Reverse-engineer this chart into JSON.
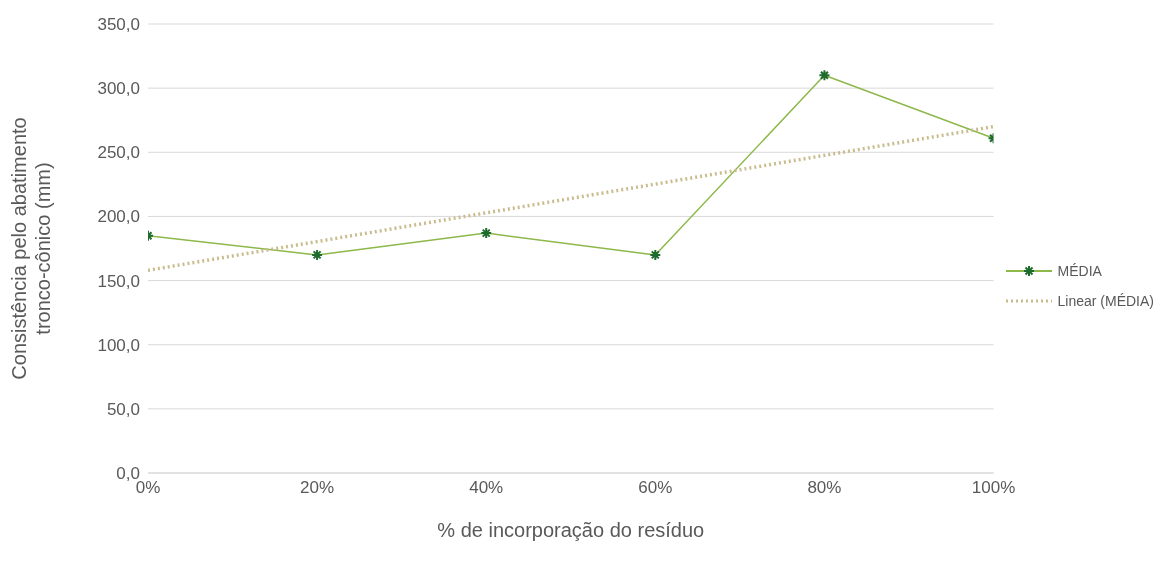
{
  "chart_data": {
    "type": "line",
    "xlabel": "% de incorporação do resíduo",
    "ylabel": "Consistência pelo abatimento\ntronco-cônico (mm)",
    "xlim": [
      0,
      100
    ],
    "xticks": [
      {
        "value": 0,
        "label": "0%"
      },
      {
        "value": 20,
        "label": "20%"
      },
      {
        "value": 40,
        "label": "40%"
      },
      {
        "value": 60,
        "label": "60%"
      },
      {
        "value": 80,
        "label": "80%"
      },
      {
        "value": 100,
        "label": "100%"
      }
    ],
    "ylim": [
      0,
      350
    ],
    "yticks": [
      {
        "value": 0,
        "label": "0,0"
      },
      {
        "value": 50,
        "label": "50,0"
      },
      {
        "value": 100,
        "label": "100,0"
      },
      {
        "value": 150,
        "label": "150,0"
      },
      {
        "value": 200,
        "label": "200,0"
      },
      {
        "value": 250,
        "label": "250,0"
      },
      {
        "value": 300,
        "label": "300,0"
      },
      {
        "value": 350,
        "label": "350,0"
      }
    ],
    "grid": "y",
    "legend": "right",
    "series": [
      {
        "name": "MÉDIA",
        "color": "#8db84a",
        "marker": "cross",
        "line_style": "solid",
        "x": [
          0,
          20,
          40,
          60,
          80,
          100
        ],
        "values": [
          185,
          170,
          187,
          170,
          310,
          261
        ]
      },
      {
        "name": "Linear (MÉDIA)",
        "color": "#c9bd8f",
        "marker": "none",
        "line_style": "dotted",
        "x": [
          0,
          100
        ],
        "values": [
          158,
          270
        ]
      }
    ]
  }
}
